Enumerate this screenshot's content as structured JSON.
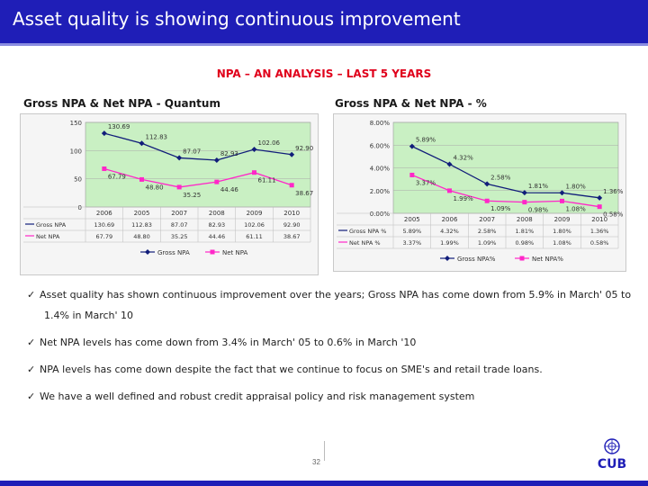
{
  "header": {
    "title": "Asset quality is showing continuous improvement",
    "color": "#1f1eb7"
  },
  "subtitle": "NPA – AN ANALYSIS – LAST 5 YEARS",
  "chart_titles": {
    "left": "Gross NPA & Net NPA - Quantum",
    "right": "Gross NPA & Net NPA - %"
  },
  "colors": {
    "gross": "#111d7a",
    "net": "#ff27c8",
    "plot_bg": "#c9f0c3"
  },
  "chart_data": [
    {
      "type": "line",
      "categories": [
        "2006",
        "2005",
        "2007",
        "2008",
        "2009",
        "2010"
      ],
      "ylim": [
        0,
        150
      ],
      "yticks": [
        "0",
        "50",
        "100",
        "150"
      ],
      "series": [
        {
          "name": "Gross NPA",
          "values": [
            130.69,
            112.83,
            87.07,
            82.93,
            102.06,
            92.9
          ],
          "labels": [
            "130.69",
            "112.83",
            "87.07",
            "82.93",
            "102.06",
            "92.90"
          ]
        },
        {
          "name": "Net NPA",
          "values": [
            67.79,
            48.8,
            35.25,
            44.46,
            61.11,
            38.67
          ],
          "labels": [
            "67.79",
            "48.80",
            "35.25",
            "44.46",
            "61.11",
            "38.67"
          ]
        }
      ],
      "grid": true,
      "legend": "bottom"
    },
    {
      "type": "line",
      "categories": [
        "2005",
        "2006",
        "2007",
        "2008",
        "2009",
        "2010"
      ],
      "ylim": [
        0,
        8
      ],
      "yticks": [
        "0.00%",
        "2.00%",
        "4.00%",
        "6.00%",
        "8.00%"
      ],
      "series": [
        {
          "name": "Gross NPA%",
          "values": [
            5.89,
            4.32,
            2.58,
            1.81,
            1.8,
            1.36
          ],
          "labels": [
            "5.89%",
            "4.32%",
            "2.58%",
            "1.81%",
            "1.80%",
            "1.36%"
          ],
          "point_labels": [
            "5.89%",
            "4.32%",
            "2.58%",
            "1.81%",
            "1.80%",
            "1.36%"
          ]
        },
        {
          "name": "Net NPA%",
          "values": [
            3.37,
            1.99,
            1.09,
            0.98,
            1.08,
            0.58
          ],
          "labels": [
            "3.37%",
            "1.99%",
            "1.09%",
            "0.98%",
            "1.08%",
            "0.58%"
          ],
          "point_labels": [
            "3.37%",
            "1.99%",
            "1.09%",
            "0.98%",
            "1.08%",
            "0.58%"
          ]
        }
      ],
      "table_row_names": [
        "Gross NPA %",
        "Net NPA %"
      ],
      "grid": true,
      "legend": "bottom"
    }
  ],
  "table_left_row_names": [
    "Gross NPA",
    "Net NPA"
  ],
  "bullets": [
    "Asset quality has shown continuous improvement over the years; Gross NPA has come down from 5.9% in March' 05 to",
    "1.4% in March' 10",
    "Net NPA levels has come down from 3.4% in March' 05  to 0.6% in March '10",
    "NPA levels has come down despite the fact that we continue to focus on SME's and retail trade loans.",
    "We have a well defined and robust credit appraisal policy and risk management system"
  ],
  "check_glyph": "✓",
  "page_number": "32",
  "logo_text": "CUB"
}
